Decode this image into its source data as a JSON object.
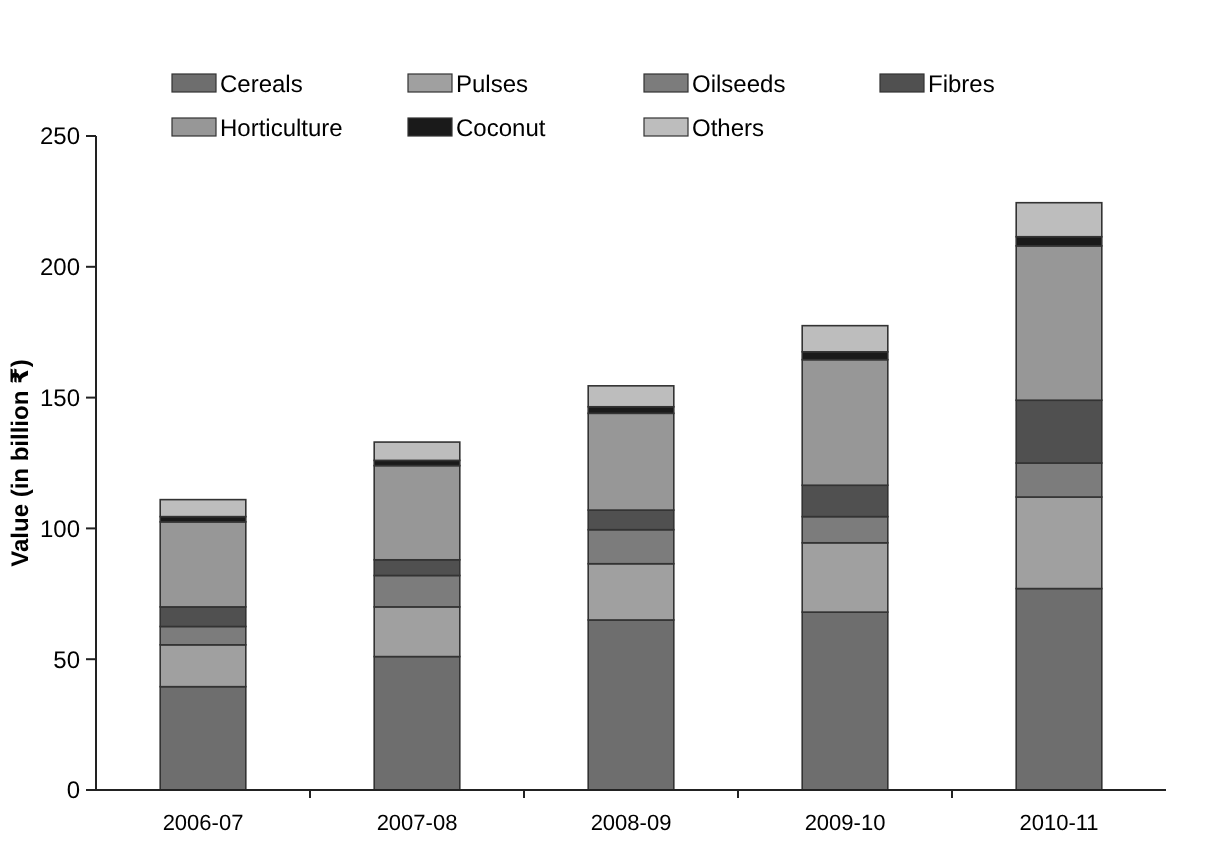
{
  "chart_data": {
    "type": "bar",
    "ylabel": "Value (in billion ₹)",
    "stacked": true,
    "categories": [
      "2006-07",
      "2007-08",
      "2008-09",
      "2009-10",
      "2010-11"
    ],
    "series": [
      {
        "name": "Cereals",
        "color": "#6e6e6e",
        "values": [
          39.5,
          51,
          65,
          68,
          77
        ]
      },
      {
        "name": "Pulses",
        "color": "#a0a0a0",
        "values": [
          16,
          19,
          21.5,
          26.5,
          35
        ]
      },
      {
        "name": "Oilseeds",
        "color": "#7c7c7c",
        "values": [
          7,
          12,
          13,
          10,
          13
        ]
      },
      {
        "name": "Fibres",
        "color": "#505050",
        "values": [
          7.5,
          6,
          7.5,
          12,
          24
        ]
      },
      {
        "name": "Horticulture",
        "color": "#979797",
        "values": [
          32.5,
          36,
          37,
          48,
          59
        ]
      },
      {
        "name": "Coconut",
        "color": "#1a1a1a",
        "values": [
          2,
          2,
          2.5,
          3,
          3.5
        ]
      },
      {
        "name": "Others",
        "color": "#bdbdbd",
        "values": [
          6.5,
          7,
          8,
          10,
          13
        ]
      }
    ],
    "ylim": [
      0,
      250
    ],
    "yticks": [
      0,
      50,
      100,
      150,
      200,
      250
    ],
    "grid": false,
    "legend": "top"
  }
}
